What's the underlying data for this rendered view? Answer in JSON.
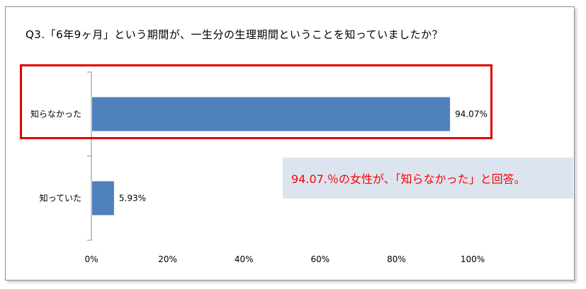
{
  "chart_data": {
    "type": "bar",
    "orientation": "horizontal",
    "title": "Q3.「6年9ヶ月」という期間が、一生分の生理期間ということを知っていましたか？",
    "categories": [
      "知らなかった",
      "知っていた"
    ],
    "values": [
      94.07,
      5.93
    ],
    "data_labels": [
      "94.07%",
      "5.93%"
    ],
    "xlim": [
      0,
      100
    ],
    "xticks": [
      "0%",
      "20%",
      "40%",
      "60%",
      "80%",
      "100%"
    ],
    "xlabel": "",
    "ylabel": "",
    "grid": false,
    "bar_color": "#4f81bd"
  },
  "annotation": {
    "text": "94.07.％の女性が、「知らなかった」と回答。",
    "text_color": "#ff0000",
    "background": "#dce4ef"
  },
  "highlight_color": "#e00000"
}
